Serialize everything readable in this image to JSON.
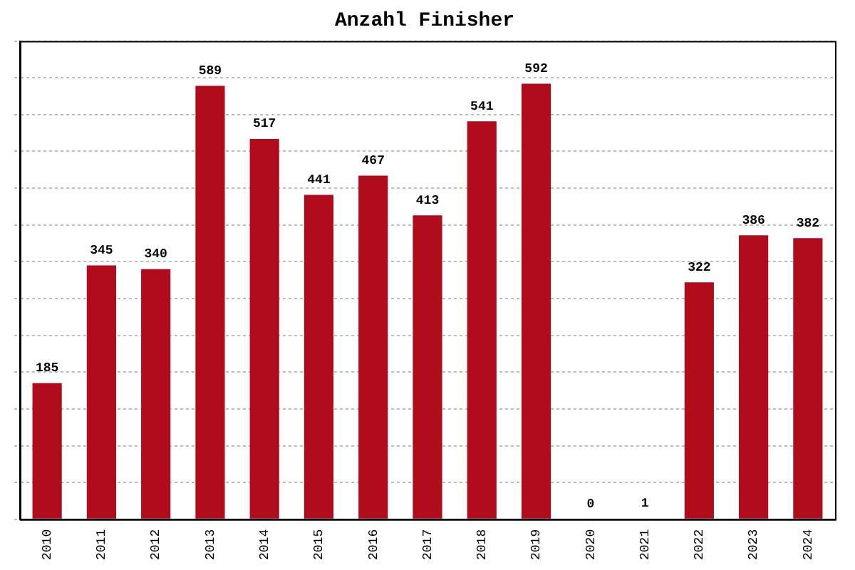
{
  "chart_data": {
    "type": "bar",
    "title": "Anzahl Finisher",
    "categories": [
      "2010",
      "2011",
      "2012",
      "2013",
      "2014",
      "2015",
      "2016",
      "2017",
      "2018",
      "2019",
      "2020",
      "2021",
      "2022",
      "2023",
      "2024"
    ],
    "values": [
      185,
      345,
      340,
      589,
      517,
      441,
      467,
      413,
      541,
      592,
      0,
      1,
      322,
      386,
      382
    ],
    "color": "#b00c1c",
    "ylim": [
      0,
      650
    ],
    "yticks": [
      {
        "value": 0,
        "label": null
      },
      {
        "value": 50,
        "label": null
      },
      {
        "value": 100,
        "label": null
      },
      {
        "value": 150,
        "label": null
      },
      {
        "value": 200,
        "label": null
      },
      {
        "value": 250,
        "label": null
      },
      {
        "value": 300,
        "label": null
      },
      {
        "value": 350,
        "label": null
      },
      {
        "value": 400,
        "label": null
      },
      {
        "value": 450,
        "label": null
      },
      {
        "value": 500,
        "label": null
      },
      {
        "value": 550,
        "label": null
      },
      {
        "value": 600,
        "label": null
      },
      {
        "value": 650,
        "label": null
      }
    ],
    "grid": "y",
    "tick_labels": "x",
    "data_labels": true
  }
}
